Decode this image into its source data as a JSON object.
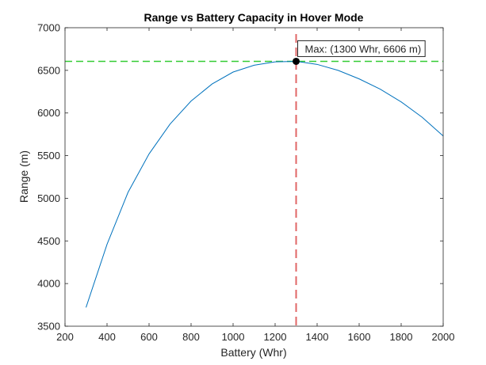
{
  "chart_data": {
    "type": "line",
    "title": "Range vs Battery Capacity in Hover Mode",
    "xlabel": "Battery (Whr)",
    "ylabel": "Range (m)",
    "xlim": [
      200,
      2000
    ],
    "ylim": [
      3500,
      7000
    ],
    "xticks": [
      200,
      400,
      600,
      800,
      1000,
      1200,
      1400,
      1600,
      1800,
      2000
    ],
    "yticks": [
      3500,
      4000,
      4500,
      5000,
      5500,
      6000,
      6500,
      7000
    ],
    "grid": false,
    "series": [
      {
        "color": "#0072BD",
        "x": [
          300,
          400,
          500,
          600,
          700,
          800,
          900,
          1000,
          1100,
          1200,
          1300,
          1400,
          1500,
          1600,
          1700,
          1800,
          1900,
          2000
        ],
        "y": [
          3720,
          4460,
          5070,
          5520,
          5870,
          6140,
          6340,
          6480,
          6560,
          6600,
          6606,
          6570,
          6500,
          6400,
          6280,
          6130,
          5950,
          5730
        ]
      }
    ],
    "reference_lines": [
      {
        "orientation": "horizontal",
        "value": 6606,
        "color": "#33CC33",
        "style": "dashed"
      },
      {
        "orientation": "vertical",
        "value": 1300,
        "color": "#E06666",
        "style": "dashed"
      }
    ],
    "max_point": {
      "x": 1300,
      "y": 6606,
      "color": "#000000"
    },
    "annotation": {
      "text": "Max: (1300 Whr, 6606 m)",
      "x": 1300,
      "y": 6606
    }
  }
}
